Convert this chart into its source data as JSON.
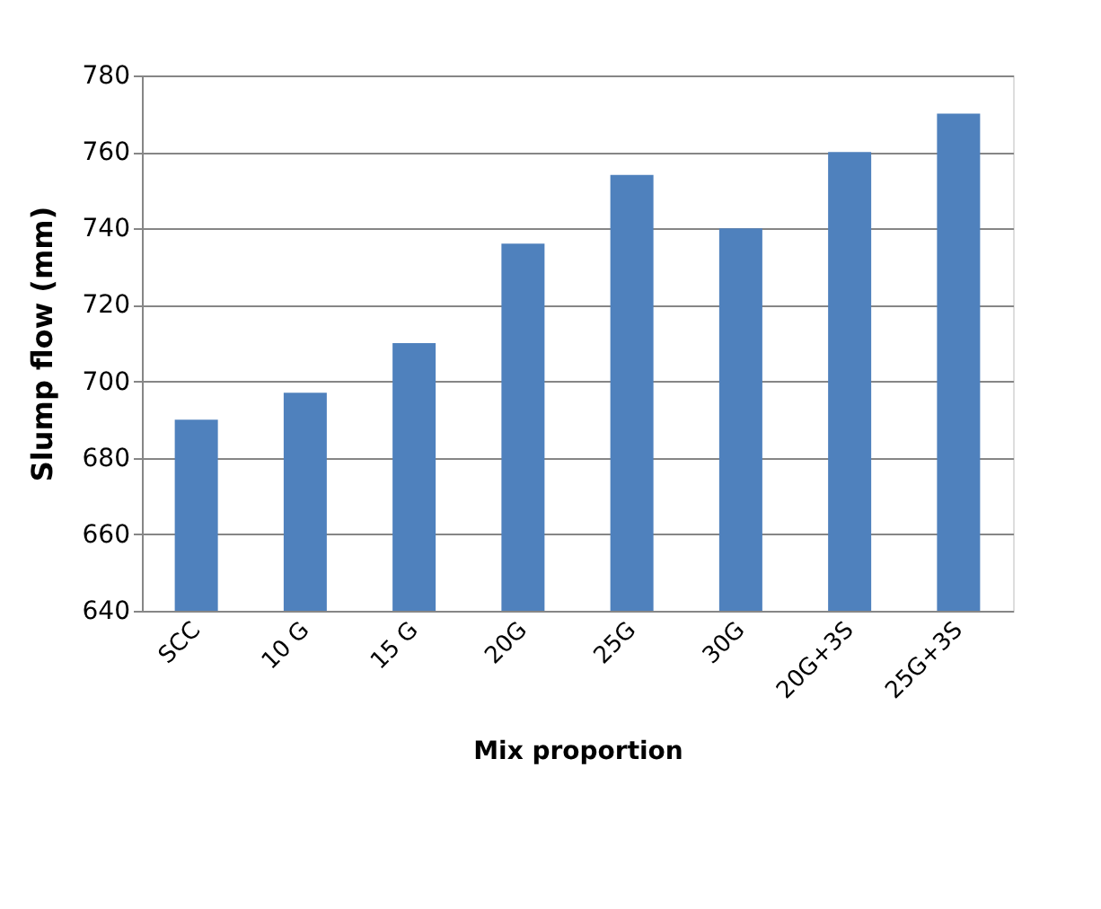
{
  "chart_data": {
    "type": "bar",
    "xlabel": "Mix proportion",
    "ylabel": "Slump flow (mm)",
    "categories": [
      "SCC",
      "10 G",
      "15 G",
      "20G",
      "25G",
      "30G",
      "20G+3S",
      "25G+3S"
    ],
    "values": [
      690,
      697,
      710,
      736,
      754,
      740,
      760,
      770
    ],
    "color": "#4f81bd",
    "ylim": [
      640,
      780
    ],
    "yticks": [
      640,
      660,
      680,
      700,
      720,
      740,
      760,
      780
    ],
    "grid": "y"
  }
}
